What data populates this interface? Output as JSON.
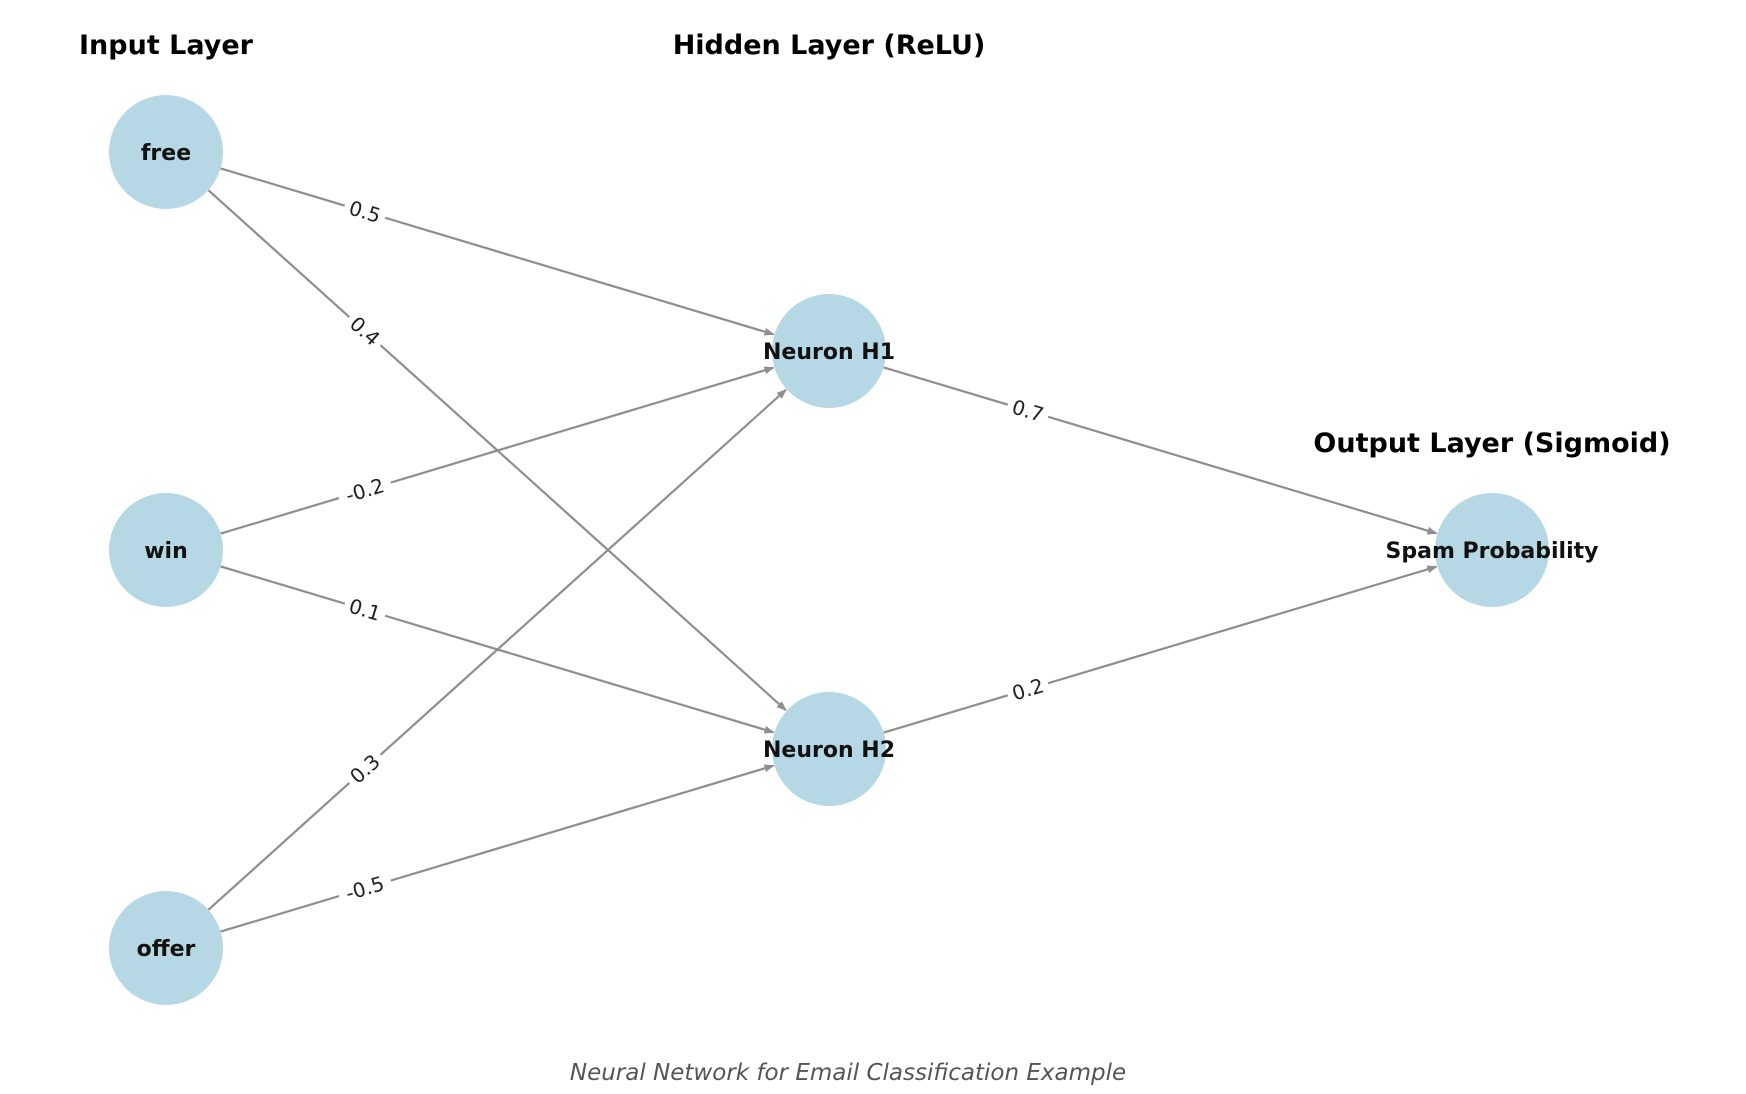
{
  "layers": {
    "input": "Input Layer",
    "hidden": "Hidden Layer (ReLU)",
    "output": "Output Layer (Sigmoid)"
  },
  "nodes": {
    "free": "free",
    "win": "win",
    "offer": "offer",
    "h1": "Neuron H1",
    "h2": "Neuron H2",
    "out": "Spam Probability"
  },
  "edges": [
    {
      "from": "free",
      "to": "h1",
      "weight": "0.5"
    },
    {
      "from": "free",
      "to": "h2",
      "weight": "0.4"
    },
    {
      "from": "win",
      "to": "h1",
      "weight": "-0.2"
    },
    {
      "from": "win",
      "to": "h2",
      "weight": "0.1"
    },
    {
      "from": "offer",
      "to": "h1",
      "weight": "0.3"
    },
    {
      "from": "offer",
      "to": "h2",
      "weight": "-0.5"
    },
    {
      "from": "h1",
      "to": "out",
      "weight": "0.7"
    },
    {
      "from": "h2",
      "to": "out",
      "weight": "0.2"
    }
  ],
  "caption": "Neural Network for Email Classification Example",
  "colors": {
    "node_fill": "#b5d8e4",
    "edge": "#8e8e8e"
  }
}
